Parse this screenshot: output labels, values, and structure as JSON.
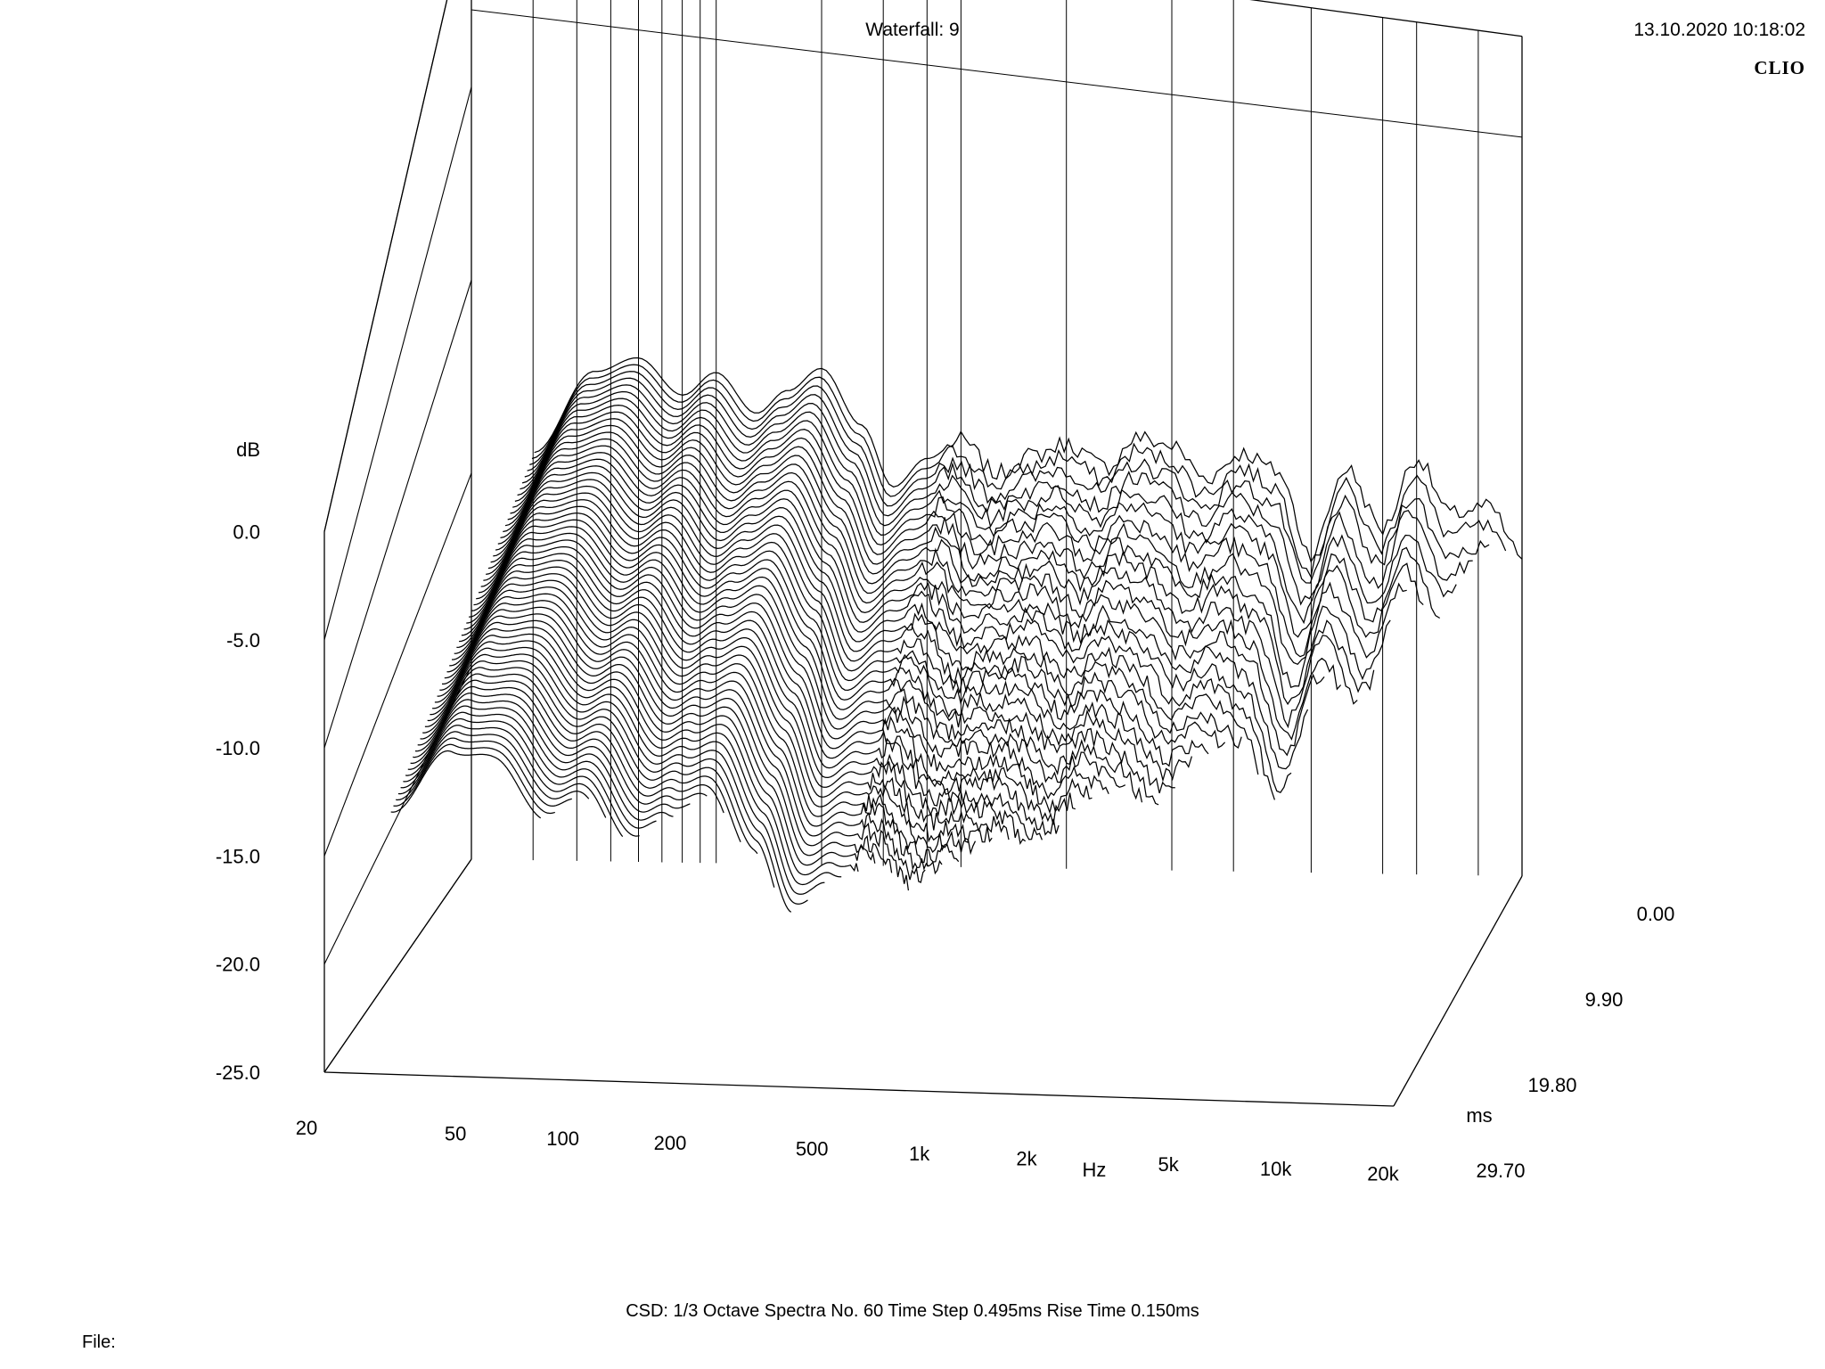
{
  "header": {
    "title": "Waterfall: 9",
    "timestamp": "13.10.2020 10:18:02",
    "brand": "CLIO"
  },
  "footer": {
    "settings": "CSD:   1/3 Octave   Spectra No. 60   Time Step 0.495ms   Rise Time 0.150ms",
    "file_label": "File:"
  },
  "chart_data": {
    "type": "waterfall",
    "title": "Waterfall: 9",
    "xlabel": "Hz",
    "ylabel": "dB",
    "zlabel": "ms",
    "x_scale": "log",
    "xlim": [
      20,
      20000
    ],
    "ylim": [
      -25.0,
      0.0
    ],
    "zlim": [
      0.0,
      29.7
    ],
    "x_tick_labels": [
      "20",
      "50",
      "100",
      "200",
      "500",
      "1k",
      "2k",
      "5k",
      "10k",
      "20k"
    ],
    "x_tick_values": [
      20,
      50,
      100,
      200,
      500,
      1000,
      2000,
      5000,
      10000,
      20000
    ],
    "y_tick_labels": [
      "0.0",
      "-5.0",
      "-10.0",
      "-15.0",
      "-20.0",
      "-25.0"
    ],
    "y_tick_values": [
      0,
      -5,
      -10,
      -15,
      -20,
      -25
    ],
    "z_tick_labels": [
      "0.00",
      "9.90",
      "19.80",
      "29.70"
    ],
    "z_tick_values": [
      0.0,
      9.9,
      19.8,
      29.7
    ],
    "spectra_count": 60,
    "time_step_ms": 0.495,
    "rise_time_ms": 0.15,
    "smoothing": "1/3 Octave",
    "grid": true,
    "line_color": "#000000",
    "first_spectrum": {
      "freq_hz": [
        20,
        30,
        45,
        60,
        80,
        100,
        130,
        160,
        200,
        260,
        320,
        400,
        500,
        630,
        800,
        1000,
        1300,
        1600,
        2000,
        2500,
        3200,
        4000,
        5000,
        6300,
        8000,
        10000,
        12500,
        16000,
        20000
      ],
      "level_db": [
        -9.5,
        -6.0,
        -2.0,
        -1.2,
        -2.8,
        -1.6,
        -3.4,
        -2.2,
        -1.0,
        -3.6,
        -6.5,
        -5.0,
        -4.0,
        -5.5,
        -4.5,
        -3.8,
        -4.8,
        -3.2,
        -3.5,
        -5.0,
        -3.6,
        -4.4,
        -8.5,
        -4.0,
        -7.0,
        -3.2,
        -6.0,
        -5.5,
        -8.0
      ]
    }
  }
}
